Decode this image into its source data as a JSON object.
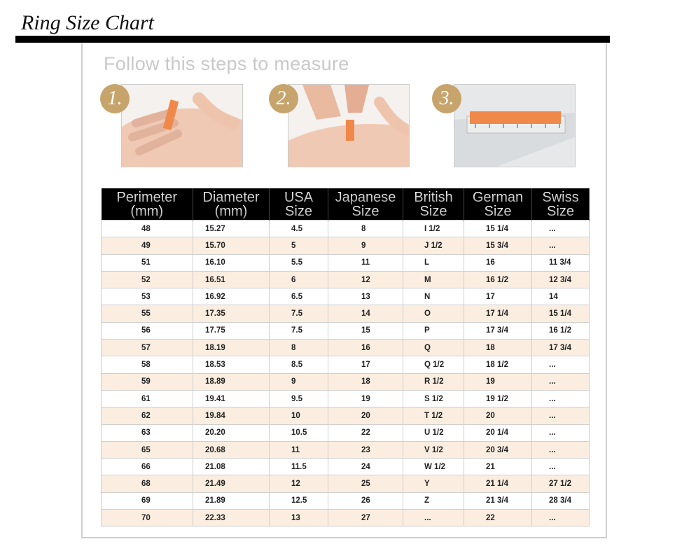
{
  "title": "Ring Size Chart",
  "subtitle": "Follow this steps to measure",
  "steps": [
    {
      "badge": "1.",
      "image": "hand-wrapping-paper-strip"
    },
    {
      "badge": "2.",
      "image": "hand-marking-paper-strip"
    },
    {
      "badge": "3.",
      "image": "paper-strip-on-ruler"
    }
  ],
  "colors": {
    "badge": "#c7a46c",
    "header_bg": "#000000",
    "row_alt": "#fbeee0",
    "strip": "#f0884a"
  },
  "table": {
    "headers": [
      [
        "Perimeter",
        "(mm)"
      ],
      [
        "Diameter",
        "(mm)"
      ],
      [
        "USA",
        "Size"
      ],
      [
        "Japanese",
        "Size"
      ],
      [
        "British",
        "Size"
      ],
      [
        "German",
        "Size"
      ],
      [
        "Swiss",
        "Size"
      ]
    ],
    "rows": [
      [
        "48",
        "15.27",
        "4.5",
        "8",
        "I 1/2",
        "15 1/4",
        "..."
      ],
      [
        "49",
        "15.70",
        "5",
        "9",
        "J 1/2",
        "15 3/4",
        "..."
      ],
      [
        "51",
        "16.10",
        "5.5",
        "11",
        "L",
        "16",
        "11 3/4"
      ],
      [
        "52",
        "16.51",
        "6",
        "12",
        "M",
        "16 1/2",
        "12 3/4"
      ],
      [
        "53",
        "16.92",
        "6.5",
        "13",
        "N",
        "17",
        "14"
      ],
      [
        "55",
        "17.35",
        "7.5",
        "14",
        "O",
        "17 1/4",
        "15 1/4"
      ],
      [
        "56",
        "17.75",
        "7.5",
        "15",
        "P",
        "17 3/4",
        "16 1/2"
      ],
      [
        "57",
        "18.19",
        "8",
        "16",
        "Q",
        "18",
        "17 3/4"
      ],
      [
        "58",
        "18.53",
        "8.5",
        "17",
        "Q 1/2",
        "18 1/2",
        "..."
      ],
      [
        "59",
        "18.89",
        "9",
        "18",
        "R 1/2",
        "19",
        "..."
      ],
      [
        "61",
        "19.41",
        "9.5",
        "19",
        "S 1/2",
        "19 1/2",
        "..."
      ],
      [
        "62",
        "19.84",
        "10",
        "20",
        "T 1/2",
        "20",
        "..."
      ],
      [
        "63",
        "20.20",
        "10.5",
        "22",
        "U 1/2",
        "20 1/4",
        "..."
      ],
      [
        "65",
        "20.68",
        "11",
        "23",
        "V 1/2",
        "20 3/4",
        "..."
      ],
      [
        "66",
        "21.08",
        "11.5",
        "24",
        "W 1/2",
        "21",
        "..."
      ],
      [
        "68",
        "21.49",
        "12",
        "25",
        "Y",
        "21 1/4",
        "27 1/2"
      ],
      [
        "69",
        "21.89",
        "12.5",
        "26",
        "Z",
        "21 3/4",
        "28 3/4"
      ],
      [
        "70",
        "22.33",
        "13",
        "27",
        "...",
        "22",
        "..."
      ]
    ]
  }
}
